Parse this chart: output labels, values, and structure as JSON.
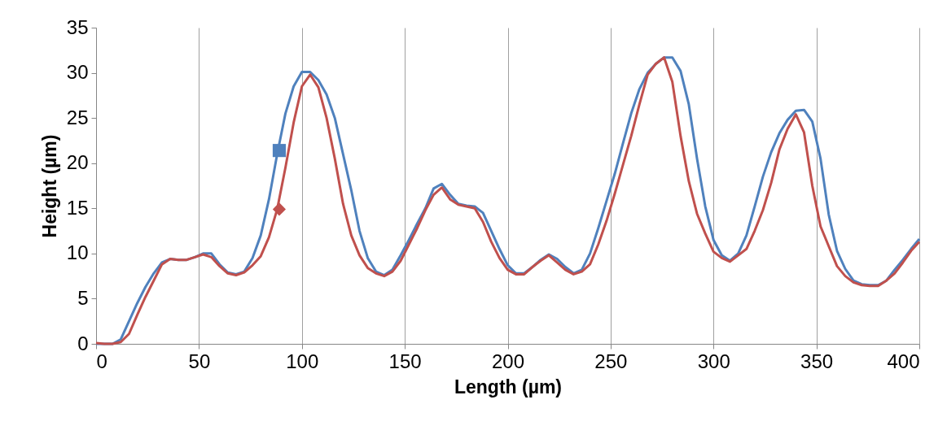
{
  "chart_data": {
    "type": "line",
    "xlabel": "Length (µm)",
    "ylabel": "Height (µm)",
    "xlim": [
      0,
      400
    ],
    "ylim": [
      0,
      35
    ],
    "xticks": [
      0,
      50,
      100,
      150,
      200,
      250,
      300,
      350,
      400
    ],
    "yticks": [
      0,
      5,
      10,
      15,
      20,
      25,
      30,
      35
    ],
    "grid": "x",
    "legend": false,
    "line_style": "solid",
    "x": [
      0,
      4,
      8,
      12,
      16,
      20,
      24,
      28,
      32,
      36,
      40,
      44,
      48,
      52,
      56,
      60,
      64,
      68,
      72,
      76,
      80,
      84,
      88,
      92,
      96,
      100,
      104,
      108,
      112,
      116,
      120,
      124,
      128,
      132,
      136,
      140,
      144,
      148,
      152,
      156,
      160,
      164,
      168,
      172,
      176,
      180,
      184,
      188,
      192,
      196,
      200,
      204,
      208,
      212,
      216,
      220,
      224,
      228,
      232,
      236,
      240,
      244,
      248,
      252,
      256,
      260,
      264,
      268,
      272,
      276,
      280,
      284,
      288,
      292,
      296,
      300,
      304,
      308,
      312,
      316,
      320,
      324,
      328,
      332,
      336,
      340,
      344,
      348,
      352,
      356,
      360,
      364,
      368,
      372,
      376,
      380,
      384,
      388,
      392,
      396,
      400
    ],
    "series": [
      {
        "type": "line",
        "marker": "none",
        "color": "#4f81bd",
        "values": [
          0,
          0,
          0,
          0.5,
          2.5,
          4.5,
          6.3,
          7.8,
          9,
          9.4,
          9.3,
          9.3,
          9.6,
          10,
          10,
          8.8,
          7.9,
          7.7,
          8,
          9.5,
          12,
          16,
          21,
          25.5,
          28.5,
          30.1,
          30.1,
          29.2,
          27.6,
          25,
          21,
          17,
          12.5,
          9.5,
          8,
          7.6,
          8.2,
          9.8,
          11.5,
          13.3,
          15,
          17.2,
          17.7,
          16.5,
          15.5,
          15.3,
          15.2,
          14.5,
          12.5,
          10.5,
          8.7,
          7.8,
          7.8,
          8.5,
          9.3,
          9.9,
          9.4,
          8.5,
          7.8,
          8.2,
          10,
          12.8,
          15.8,
          18.8,
          22.2,
          25.5,
          28.2,
          30,
          31,
          31.7,
          31.7,
          30.2,
          26.5,
          20.5,
          15.2,
          11.5,
          9.8,
          9.2,
          10,
          12,
          15.2,
          18.5,
          21.2,
          23.3,
          24.8,
          25.8,
          25.9,
          24.6,
          20.5,
          14.3,
          10.3,
          8.3,
          7,
          6.6,
          6.5,
          6.5,
          7,
          8.2,
          9.3,
          10.5,
          11.6
        ]
      },
      {
        "type": "line",
        "marker": "none",
        "color": "#c0504d",
        "values": [
          0.1,
          0,
          0,
          0.2,
          1.1,
          3.2,
          5.2,
          7,
          8.8,
          9.4,
          9.3,
          9.3,
          9.6,
          9.9,
          9.6,
          8.6,
          7.8,
          7.6,
          7.9,
          8.7,
          9.7,
          11.8,
          14.9,
          19.5,
          24.5,
          28.5,
          29.8,
          28.4,
          25,
          20.5,
          15.5,
          12,
          9.8,
          8.4,
          7.8,
          7.5,
          8,
          9.2,
          11,
          12.8,
          14.8,
          16.5,
          17.3,
          16,
          15.4,
          15.2,
          15,
          13.5,
          11.3,
          9.5,
          8.2,
          7.7,
          7.7,
          8.5,
          9.2,
          9.8,
          9,
          8.2,
          7.7,
          8,
          8.8,
          11,
          13.6,
          16.6,
          19.8,
          23,
          26.5,
          29.8,
          31,
          31.7,
          29,
          23,
          18,
          14.4,
          12.2,
          10.2,
          9.5,
          9.1,
          9.8,
          10.5,
          12.5,
          14.8,
          17.8,
          21.5,
          23.8,
          25.4,
          23.4,
          17.5,
          13,
          10.8,
          8.6,
          7.5,
          6.8,
          6.5,
          6.4,
          6.4,
          7,
          7.8,
          9,
          10.3,
          11.3
        ]
      },
      {
        "type": "scatter",
        "marker": "square",
        "color": "#4f81bd",
        "x": [
          89
        ],
        "values": [
          21.4
        ]
      },
      {
        "type": "scatter",
        "marker": "diamond",
        "color": "#c0504d",
        "x": [
          89
        ],
        "values": [
          14.9
        ]
      }
    ]
  }
}
